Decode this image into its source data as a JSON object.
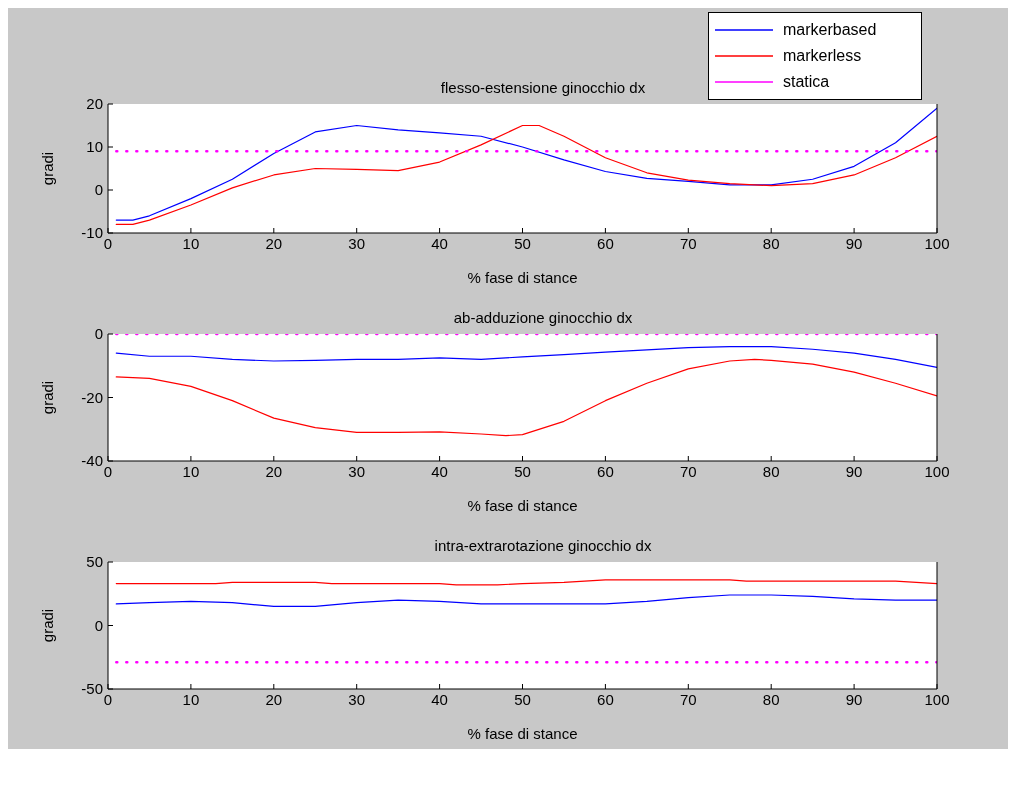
{
  "chart_data": [
    {
      "type": "line",
      "title": "flesso-estensione ginocchio dx",
      "xlabel": "% fase di stance",
      "ylabel": "gradi",
      "xlim": [
        0,
        100
      ],
      "xticks": [
        0,
        10,
        20,
        30,
        40,
        50,
        60,
        70,
        80,
        90,
        100
      ],
      "ylim": [
        -10,
        20
      ],
      "yticks": [
        -10,
        0,
        10,
        20
      ],
      "grid": false,
      "legend": "top right",
      "marker": "none",
      "series": [
        {
          "name": "markerbased",
          "color": "#0000ff",
          "x": [
            1,
            3,
            5,
            10,
            15,
            20,
            25,
            30,
            35,
            40,
            45,
            50,
            55,
            60,
            65,
            70,
            75,
            80,
            85,
            90,
            95,
            100
          ],
          "values": [
            -7,
            -7,
            -6,
            -2,
            2.5,
            8.5,
            13.5,
            15,
            14,
            13.3,
            12.5,
            10,
            7,
            4.3,
            2.7,
            2,
            1.2,
            1.2,
            2.5,
            5.5,
            11,
            19
          ]
        },
        {
          "name": "markerless",
          "color": "#ff0000",
          "x": [
            1,
            3,
            5,
            10,
            15,
            20,
            25,
            30,
            35,
            40,
            45,
            50,
            52,
            55,
            60,
            65,
            70,
            75,
            80,
            85,
            90,
            95,
            100
          ],
          "values": [
            -8,
            -8,
            -7,
            -3.5,
            0.5,
            3.5,
            5,
            4.8,
            4.5,
            6.5,
            10.5,
            15,
            15,
            12.5,
            7.5,
            4,
            2.3,
            1.5,
            1,
            1.5,
            3.5,
            7.5,
            12.5
          ]
        },
        {
          "name": "statica",
          "color": "#ff00ff",
          "line_style": "dotted",
          "x": [
            1,
            100
          ],
          "values": [
            9,
            9
          ]
        }
      ]
    },
    {
      "type": "line",
      "title": "ab-adduzione ginocchio dx",
      "xlabel": "% fase di stance",
      "ylabel": "gradi",
      "xlim": [
        0,
        100
      ],
      "xticks": [
        0,
        10,
        20,
        30,
        40,
        50,
        60,
        70,
        80,
        90,
        100
      ],
      "ylim": [
        -40,
        0
      ],
      "yticks": [
        -40,
        -20,
        0
      ],
      "grid": false,
      "legend": false,
      "marker": "none",
      "series": [
        {
          "color": "#0000ff",
          "x": [
            1,
            5,
            10,
            15,
            20,
            25,
            30,
            35,
            40,
            45,
            50,
            55,
            60,
            65,
            70,
            75,
            80,
            85,
            90,
            95,
            100
          ],
          "values": [
            -6,
            -7,
            -7,
            -8,
            -8.5,
            -8.3,
            -8,
            -8,
            -7.5,
            -8,
            -7.2,
            -6.5,
            -5.7,
            -5,
            -4.3,
            -4,
            -4,
            -4.8,
            -6,
            -8,
            -10.5
          ]
        },
        {
          "color": "#ff0000",
          "x": [
            1,
            5,
            10,
            15,
            20,
            25,
            30,
            35,
            40,
            45,
            48,
            50,
            55,
            60,
            65,
            70,
            75,
            78,
            80,
            85,
            90,
            95,
            100
          ],
          "values": [
            -13.5,
            -14,
            -16.5,
            -21,
            -26.5,
            -29.5,
            -31,
            -31,
            -30.8,
            -31.5,
            -32,
            -31.7,
            -27.5,
            -21,
            -15.5,
            -11,
            -8.5,
            -8,
            -8.3,
            -9.5,
            -12,
            -15.5,
            -19.5
          ]
        },
        {
          "color": "#ff00ff",
          "line_style": "dotted",
          "x": [
            1,
            100
          ],
          "values": [
            0,
            0
          ]
        }
      ]
    },
    {
      "type": "line",
      "title": "intra-extrarotazione ginocchio dx",
      "xlabel": "% fase di stance",
      "ylabel": "gradi",
      "xlim": [
        0,
        100
      ],
      "xticks": [
        0,
        10,
        20,
        30,
        40,
        50,
        60,
        70,
        80,
        90,
        100
      ],
      "ylim": [
        -50,
        50
      ],
      "yticks": [
        -50,
        0,
        50
      ],
      "grid": false,
      "legend": false,
      "marker": "none",
      "series": [
        {
          "color": "#0000ff",
          "x": [
            1,
            5,
            10,
            15,
            20,
            25,
            30,
            35,
            40,
            45,
            50,
            55,
            60,
            65,
            70,
            75,
            80,
            85,
            90,
            95,
            100
          ],
          "values": [
            17,
            18,
            19,
            18,
            15,
            15,
            18,
            20,
            19,
            17,
            17,
            17,
            17,
            19,
            22,
            24,
            24,
            23,
            21,
            20,
            20
          ]
        },
        {
          "color": "#ff0000",
          "x": [
            1,
            13,
            15,
            25,
            27,
            40,
            42,
            47,
            50,
            55,
            60,
            75,
            77,
            95,
            100
          ],
          "values": [
            33,
            33,
            34,
            34,
            33,
            33,
            32,
            32,
            33,
            34,
            36,
            36,
            35,
            35,
            33
          ]
        },
        {
          "color": "#ff00ff",
          "line_style": "dotted",
          "x": [
            1,
            100
          ],
          "values": [
            -29,
            -29
          ]
        }
      ]
    }
  ]
}
